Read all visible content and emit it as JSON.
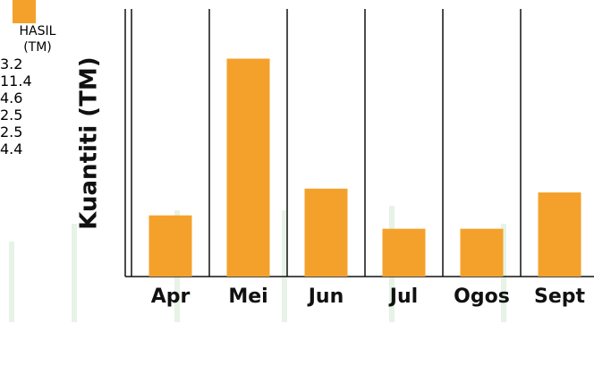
{
  "chart_data": {
    "type": "bar",
    "y_label": "Kuantiti (TM)",
    "categories": [
      "Apr",
      "Mei",
      "Jun",
      "Jul",
      "Ogos",
      "Sept"
    ],
    "series": [
      {
        "name": "HASIL (TM)",
        "color": "#f4a12b",
        "values": [
          3.2,
          11.4,
          4.6,
          2.5,
          2.5,
          4.4
        ]
      }
    ],
    "ylim": [
      0,
      14
    ]
  }
}
